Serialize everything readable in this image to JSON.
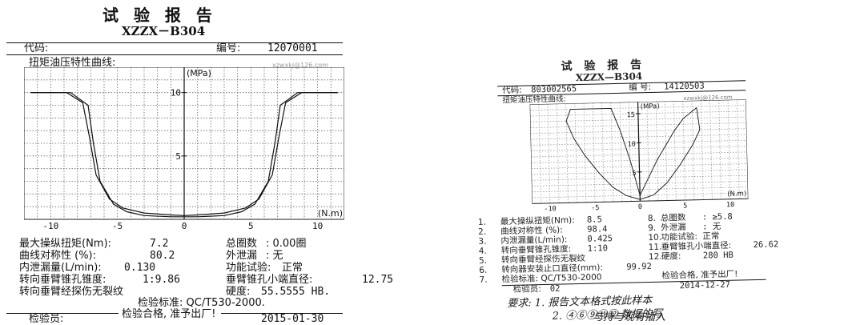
{
  "left": {
    "title": "试 验 报 告",
    "model": "XZZX－B304",
    "code_label": "代码:",
    "serial_label": "编号:",
    "serial_value": "12070001",
    "curve_label": "扭矩油压特性曲线:",
    "watermark": "xzwxkj@126.com",
    "chart_data": {
      "type": "line",
      "title": "",
      "xlabel": "(N.m)",
      "ylabel": "(MPa)",
      "xlim": [
        -12,
        12
      ],
      "ylim": [
        0,
        12
      ],
      "x_ticks": [
        "-10",
        "-5",
        "0",
        "5",
        "10"
      ],
      "y_ticks": [
        "5",
        "10"
      ],
      "grid": true,
      "series": [
        {
          "x": [
            -11.5,
            -8.5,
            -7.2,
            -6.8,
            -6.3,
            -5.3,
            -4.3,
            -3,
            -1,
            0,
            1,
            3,
            4.3,
            5.3,
            6.3,
            6.8,
            7.2,
            8.5,
            11.5
          ],
          "y": [
            10,
            10,
            9,
            6,
            3,
            1.2,
            0.6,
            0.3,
            0.2,
            0.2,
            0.2,
            0.3,
            0.6,
            1.2,
            3,
            6,
            9,
            10,
            10
          ]
        },
        {
          "x": [
            -11.5,
            -8.8,
            -7.6,
            -7.1,
            -6.6,
            -5.6,
            -4.6,
            -3,
            -1,
            0,
            1,
            3,
            4.6,
            5.6,
            6.6,
            7.1,
            7.6,
            8.8,
            11.5
          ],
          "y": [
            10,
            10,
            9.2,
            6.5,
            3.5,
            1.6,
            0.9,
            0.5,
            0.35,
            0.3,
            0.35,
            0.5,
            0.9,
            1.6,
            3.5,
            6.5,
            9.2,
            10,
            10
          ]
        }
      ]
    },
    "rows": [
      {
        "label": "最大操纵扭矩(Nm):",
        "value": "7.2"
      },
      {
        "label": "总圈数",
        "value": ": 0.00圈"
      },
      {
        "label": "曲线对称性  (%):",
        "value": "80.2"
      },
      {
        "label": "外泄漏",
        "value": ": 无"
      },
      {
        "label": "内泄漏量(L/min):",
        "value": "0.130"
      },
      {
        "label": "功能试验:",
        "value": "正常"
      },
      {
        "label": "转向垂臂锥孔锥度:",
        "value": "1:9.86"
      },
      {
        "label": "垂臂锥孔小端直径:",
        "value": "12.75"
      },
      {
        "label": "转向垂臂经探伤无裂纹",
        "value": ""
      },
      {
        "label": "硬度:",
        "value": "55.5555 HB."
      }
    ],
    "standard": "检验标准: QC/T530-2000.",
    "pass": "检验合格, 准予出厂!",
    "inspector_label": "检验员:",
    "date": "2015-01-30"
  },
  "right": {
    "title": "试 验 报 告",
    "model": "XZZX—B304",
    "code_label": "代码:",
    "code_value": "803002565",
    "serial_label": "编 号:",
    "serial_value": "14120503",
    "curve_label": "扭矩油压特性曲线:",
    "watermark": "xzwxkj@126.com",
    "chart_data": {
      "type": "line",
      "title": "",
      "xlabel": "(N.m)",
      "ylabel": "(MPa)",
      "xlim": [
        -12,
        12
      ],
      "ylim": [
        0,
        17
      ],
      "x_ticks": [
        "-10",
        "-5",
        "0",
        "5",
        "10"
      ],
      "y_ticks": [
        "5",
        "10",
        "15"
      ],
      "grid": true,
      "series": [
        {
          "x": [
            -7.5,
            -8,
            -7.2,
            -6,
            -4.5,
            -3,
            -1.5,
            0,
            1.5,
            3,
            4.5,
            6,
            6.8,
            6.5
          ],
          "y": [
            16,
            14,
            11,
            8,
            5,
            2.5,
            1,
            0.3,
            1,
            3,
            6,
            9.5,
            12,
            15.8
          ]
        },
        {
          "x": [
            -7.5,
            -3,
            -2,
            -1,
            0,
            1,
            2,
            3,
            4,
            5,
            6.5
          ],
          "y": [
            16,
            16,
            12,
            7,
            1,
            4,
            7,
            9.5,
            12,
            14,
            15.8
          ]
        }
      ]
    },
    "rows": [
      {
        "num": "1.",
        "label": "最大操纵扭矩(Nm):",
        "value": "8.5",
        "num2": "8.",
        "label2": "总圈数",
        "value2": ": ≥5.8"
      },
      {
        "num": "2.",
        "label": "曲线对称性  (%):",
        "value": "98.4",
        "num2": "9.",
        "label2": "外泄漏",
        "value2": ": 无"
      },
      {
        "num": "3.",
        "label": "内泄漏量(L/min):",
        "value": "0.425",
        "num2": "10.",
        "label2": "功能试验:",
        "value2": "正常"
      },
      {
        "num": "4.",
        "label": "转向垂臂锥孔锥度:",
        "value": "1:10",
        "num2": "11.",
        "label2": "垂臂锥孔小端直径:",
        "value2": "26.62"
      },
      {
        "num": "5.",
        "label": "转向垂臂经探伤无裂纹",
        "value": "",
        "num2": "12.",
        "label2": "硬度:",
        "value2": "280 HB"
      },
      {
        "num": "6.",
        "label": "转向器安装止口直径(mm):",
        "value": "99.92",
        "num2": "",
        "label2": "",
        "value2": ""
      },
      {
        "num": "7.",
        "label": "检验标准: QC/T530-2000",
        "value": "",
        "num2": "",
        "label2": "检验合格, 准予出厂!",
        "value2": ""
      }
    ],
    "inspector_label": "检验员:",
    "inspector_value": "02",
    "date": "2014-12-27",
    "handwriting": [
      "要求: 1. 报告文本格式按此样本",
      "2. ④⑥⑨⑪⑫ 数据的写",
      "与持与现有插入"
    ]
  }
}
